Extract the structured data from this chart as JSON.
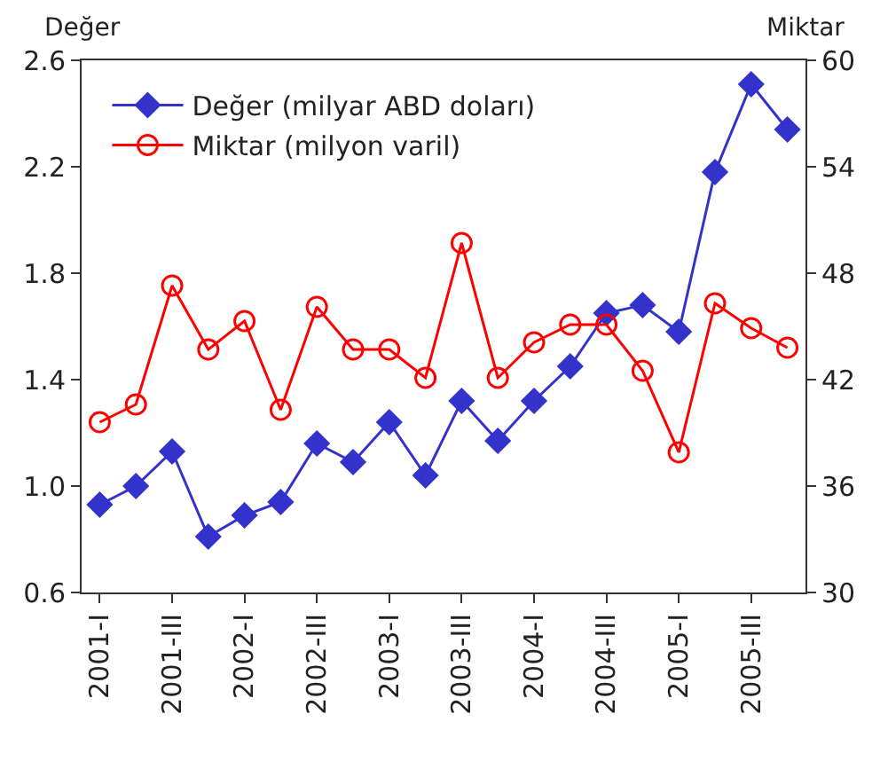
{
  "chart_data": {
    "type": "line",
    "ylabel": "Değer",
    "y2label": "Miktar",
    "categories": [
      "2001-I",
      null,
      "2001-III",
      null,
      "2002-I",
      null,
      "2002-III",
      null,
      "2003-I",
      null,
      "2003-III",
      null,
      "2004-I",
      null,
      "2004-III",
      null,
      "2005-I",
      null,
      "2005-III",
      null
    ],
    "series": [
      {
        "name": "Değer (milyar ABD doları)",
        "color": "#3333cc",
        "marker": "diamond",
        "values": [
          0.93,
          1.0,
          1.13,
          0.81,
          0.89,
          0.94,
          1.16,
          1.09,
          1.24,
          1.04,
          1.32,
          1.17,
          1.32,
          1.45,
          1.65,
          1.68,
          1.58,
          2.18,
          2.51,
          2.34
        ]
      },
      {
        "name": "Miktar (milyon varil)",
        "color": "#ff0000",
        "marker": "circle",
        "axis": "y2",
        "values": [
          39.6,
          40.6,
          47.3,
          43.7,
          45.3,
          40.3,
          46.1,
          43.7,
          43.7,
          42.1,
          49.7,
          42.1,
          44.1,
          45.1,
          45.1,
          42.5,
          37.9,
          46.3,
          44.9,
          43.8
        ]
      }
    ],
    "ylim": [
      0.6,
      2.6
    ],
    "yticks": [
      0.6,
      {
        "value": 1.0,
        "label": "1.0"
      },
      1.4,
      1.8,
      2.2,
      2.6
    ],
    "y2lim": [
      30,
      60
    ],
    "y2ticks": [
      30,
      36,
      42,
      48,
      54,
      60
    ],
    "legend": "top left"
  }
}
